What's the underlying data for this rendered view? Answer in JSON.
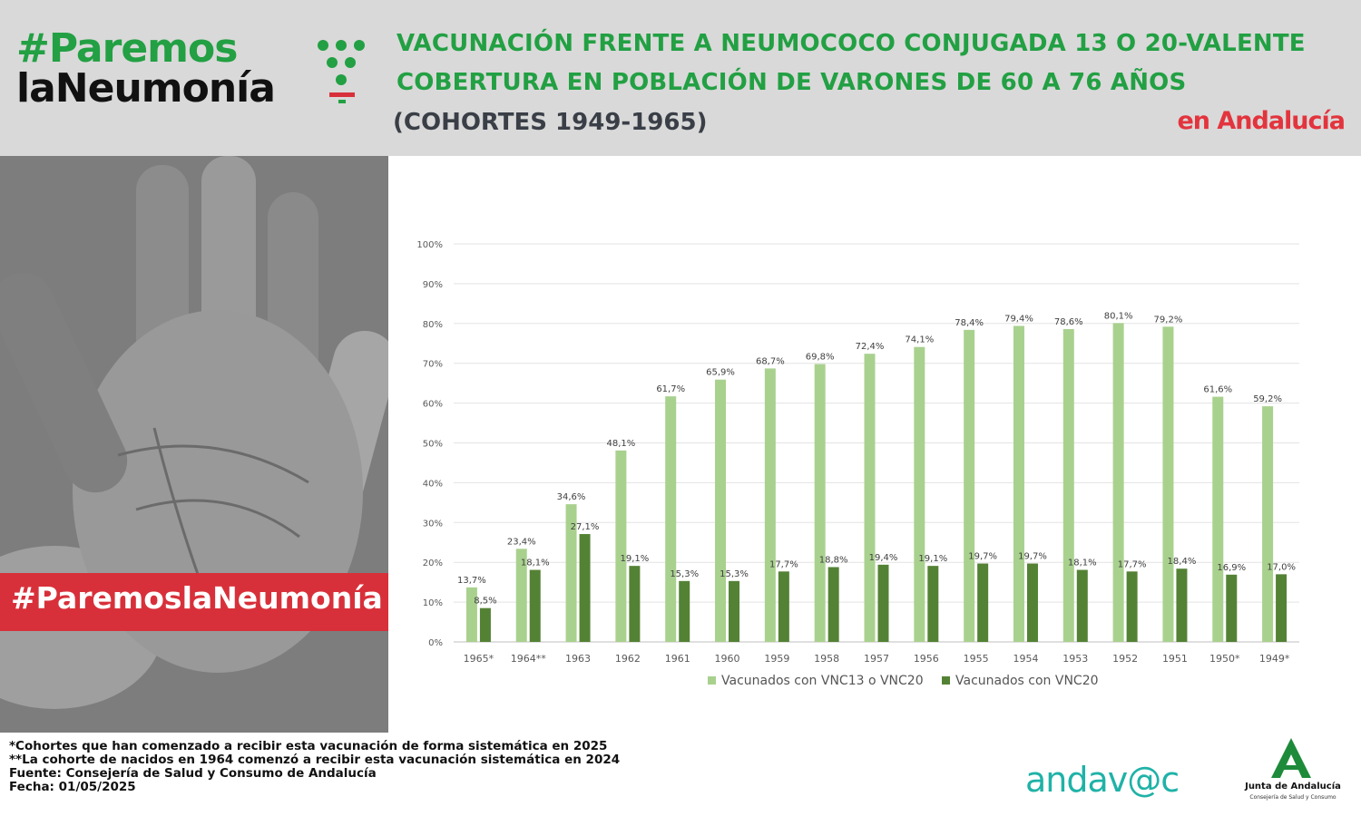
{
  "header": {
    "logo_line1": "#Paremos",
    "logo_line2": "laNeumonía",
    "title_line1": "VACUNACIÓN FRENTE A NEUMOCOCO CONJUGADA 13 O 20-VALENTE",
    "title_line2": "COBERTURA EN POBLACIÓN DE VARONES DE 60 A 76 AÑOS",
    "subtitle": "(COHORTES 1949-1965)",
    "region": "en Andalucía"
  },
  "hashtag": "#ParemoslaNeumonía",
  "chart_data": {
    "type": "bar",
    "categories": [
      "1965*",
      "1964**",
      "1963",
      "1962",
      "1961",
      "1960",
      "1959",
      "1958",
      "1957",
      "1956",
      "1955",
      "1954",
      "1953",
      "1952",
      "1951",
      "1950*",
      "1949*"
    ],
    "series": [
      {
        "name": "Vacunados con VNC13 o VNC20",
        "color": "#a9d18e",
        "values": [
          13.7,
          23.4,
          34.6,
          48.1,
          61.7,
          65.9,
          68.7,
          69.8,
          72.4,
          74.1,
          78.4,
          79.4,
          78.6,
          80.1,
          79.2,
          61.6,
          59.2
        ],
        "labels": [
          "13,7%",
          "23,4%",
          "34,6%",
          "48,1%",
          "61,7%",
          "65,9%",
          "68,7%",
          "69,8%",
          "72,4%",
          "74,1%",
          "78,4%",
          "79,4%",
          "78,6%",
          "80,1%",
          "79,2%",
          "61,6%",
          "59,2%"
        ]
      },
      {
        "name": "Vacunados con VNC20",
        "color": "#548235",
        "values": [
          8.5,
          18.1,
          27.1,
          19.1,
          15.3,
          15.3,
          17.7,
          18.8,
          19.4,
          19.1,
          19.7,
          19.7,
          18.1,
          17.7,
          18.4,
          16.9,
          17.0
        ],
        "labels": [
          "8,5%",
          "18,1%",
          "27,1%",
          "19,1%",
          "15,3%",
          "15,3%",
          "17,7%",
          "18,8%",
          "19,4%",
          "19,1%",
          "19,7%",
          "19,7%",
          "18,1%",
          "17,7%",
          "18,4%",
          "16,9%",
          "17,0%"
        ]
      }
    ],
    "y_ticks": [
      "0%",
      "10%",
      "20%",
      "30%",
      "40%",
      "50%",
      "60%",
      "70%",
      "80%",
      "90%",
      "100%"
    ],
    "ylim": [
      0,
      100
    ],
    "grid": true,
    "legend_position": "bottom"
  },
  "footnotes": [
    "*Cohortes que han comenzado a recibir esta vacunación de forma sistemática en 2025",
    "**La cohorte de nacidos en 1964 comenzó a recibir esta vacunación sistemática en 2024",
    "Fuente: Consejería de Salud y Consumo de Andalucía",
    "Fecha: 01/05/2025"
  ],
  "logos": {
    "andavac": "andav@c",
    "junta_name": "Junta de Andalucía",
    "junta_sub": "Consejería de Salud y Consumo"
  },
  "colors": {
    "brand_green": "#22a043",
    "brand_red": "#d8303a",
    "header_bg": "#d9d9d9",
    "teal": "#1fb2a7"
  }
}
